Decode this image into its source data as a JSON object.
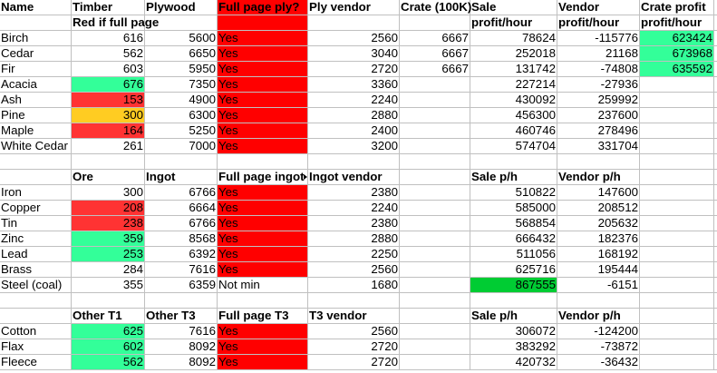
{
  "colors": {
    "green": "#33FF99",
    "red": "#FF3333",
    "orange": "#FFCC22",
    "full_red": "#FF0000",
    "dark_green": "#00CC33"
  },
  "header_rows": [
    0,
    1,
    11,
    20
  ],
  "rows": [
    [
      "Name",
      "Timber",
      "Plywood",
      {
        "v": "Full page ply?",
        "fill": "#FF0000"
      },
      "Ply vendor",
      "Crate (100K)",
      "Sale",
      "Vendor",
      "Crate profit"
    ],
    [
      "",
      "Red if full page",
      "",
      {
        "v": "",
        "fill": "#FF0000"
      },
      "",
      "",
      "profit/hour",
      "profit/hour",
      "profit/hour"
    ],
    [
      "Birch",
      "616",
      "5600",
      {
        "v": "Yes",
        "fill": "#FF0000"
      },
      "2560",
      "6667",
      "78624",
      "-115776",
      {
        "v": "623424",
        "fill": "#33FF99"
      }
    ],
    [
      "Cedar",
      "562",
      "6650",
      {
        "v": "Yes",
        "fill": "#FF0000"
      },
      "3040",
      "6667",
      "252018",
      "21168",
      {
        "v": "673968",
        "fill": "#33FF99"
      }
    ],
    [
      "Fir",
      "603",
      "5950",
      {
        "v": "Yes",
        "fill": "#FF0000"
      },
      "2720",
      "6667",
      "131742",
      "-74808",
      {
        "v": "635592",
        "fill": "#33FF99"
      }
    ],
    [
      "Acacia",
      {
        "v": "676",
        "fill": "#33FF99"
      },
      "7350",
      {
        "v": "Yes",
        "fill": "#FF0000"
      },
      "3360",
      "",
      "227214",
      "-27936",
      ""
    ],
    [
      "Ash",
      {
        "v": "153",
        "fill": "#FF3333"
      },
      "4900",
      {
        "v": "Yes",
        "fill": "#FF0000"
      },
      "2240",
      "",
      "430092",
      "259992",
      ""
    ],
    [
      "Pine",
      {
        "v": "300",
        "fill": "#FFCC22"
      },
      "6300",
      {
        "v": "Yes",
        "fill": "#FF0000"
      },
      "2880",
      "",
      "456300",
      "237600",
      ""
    ],
    [
      "Maple",
      {
        "v": "164",
        "fill": "#FF3333"
      },
      "5250",
      {
        "v": "Yes",
        "fill": "#FF0000"
      },
      "2400",
      "",
      "460746",
      "278496",
      ""
    ],
    [
      "White Cedar",
      "261",
      "7000",
      {
        "v": "Yes",
        "fill": "#FF0000"
      },
      "3200",
      "",
      "574704",
      "331704",
      ""
    ],
    [
      "",
      "",
      "",
      "",
      "",
      "",
      "",
      "",
      ""
    ],
    [
      "",
      "Ore",
      "Ingot",
      {
        "v": "Full page ingot",
        "truncated": true
      },
      "Ingot vendor",
      "",
      "Sale p/h",
      "Vendor p/h",
      ""
    ],
    [
      "Iron",
      "300",
      "6766",
      {
        "v": "Yes",
        "fill": "#FF0000"
      },
      "2380",
      "",
      "510822",
      "147600",
      ""
    ],
    [
      "Copper",
      {
        "v": "208",
        "fill": "#FF3333"
      },
      "6664",
      {
        "v": "Yes",
        "fill": "#FF0000"
      },
      "2240",
      "",
      "585000",
      "208512",
      ""
    ],
    [
      "Tin",
      {
        "v": "238",
        "fill": "#FF3333"
      },
      "6766",
      {
        "v": "Yes",
        "fill": "#FF0000"
      },
      "2380",
      "",
      "568854",
      "205632",
      ""
    ],
    [
      "Zinc",
      {
        "v": "359",
        "fill": "#33FF99"
      },
      "8568",
      {
        "v": "Yes",
        "fill": "#FF0000"
      },
      "2880",
      "",
      "666432",
      "182376",
      ""
    ],
    [
      "Lead",
      {
        "v": "253",
        "fill": "#33FF99"
      },
      "6392",
      {
        "v": "Yes",
        "fill": "#FF0000"
      },
      "2250",
      "",
      "511056",
      "168192",
      ""
    ],
    [
      "Brass",
      "284",
      "7616",
      {
        "v": "Yes",
        "fill": "#FF0000"
      },
      "2560",
      "",
      "625716",
      "195444",
      ""
    ],
    [
      "Steel (coal)",
      "355",
      "6359",
      "Not min",
      "1680",
      "",
      {
        "v": "867555",
        "fill": "#00CC33"
      },
      "-6151",
      ""
    ],
    [
      "",
      "",
      "",
      "",
      "",
      "",
      "",
      "",
      ""
    ],
    [
      "",
      "Other T1",
      "Other T3",
      "Full page T3",
      "T3 vendor",
      "",
      "Sale p/h",
      "Vendor p/h",
      ""
    ],
    [
      "Cotton",
      {
        "v": "625",
        "fill": "#33FF99"
      },
      "7616",
      {
        "v": "Yes",
        "fill": "#FF0000"
      },
      "2560",
      "",
      "306072",
      "-124200",
      ""
    ],
    [
      "Flax",
      {
        "v": "602",
        "fill": "#33FF99"
      },
      "8092",
      {
        "v": "Yes",
        "fill": "#FF0000"
      },
      "2720",
      "",
      "383292",
      "-73872",
      ""
    ],
    [
      "Fleece",
      {
        "v": "562",
        "fill": "#33FF99"
      },
      "8092",
      {
        "v": "Yes",
        "fill": "#FF0000"
      },
      "2720",
      "",
      "420732",
      "-36432",
      ""
    ]
  ]
}
